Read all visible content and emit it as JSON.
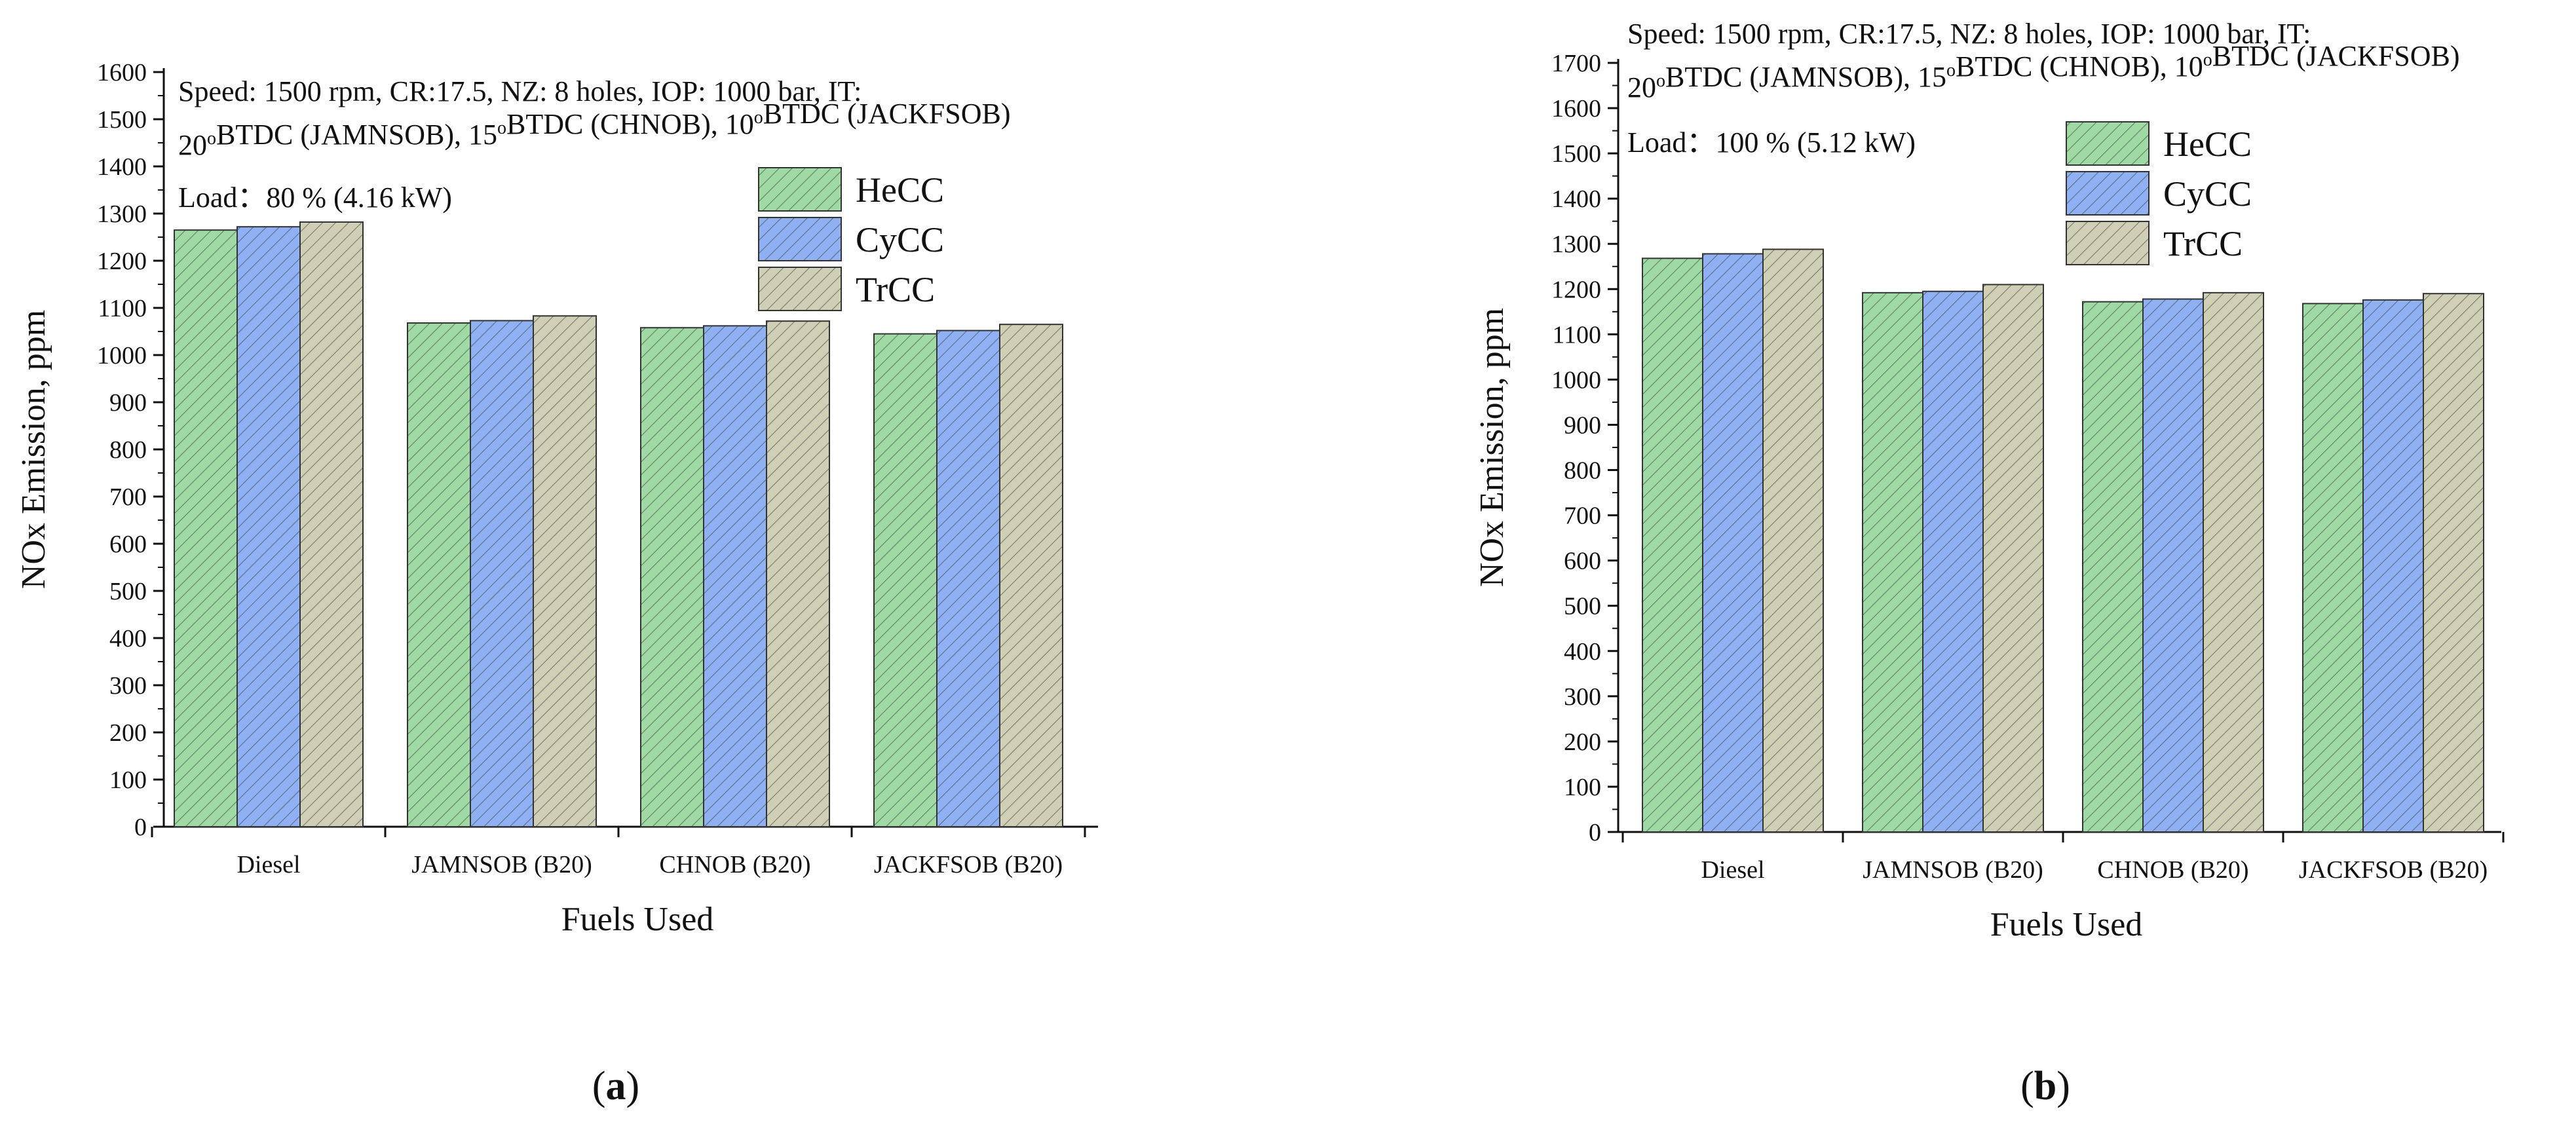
{
  "chart_data": [
    {
      "type": "bar",
      "panel_label": "(a)",
      "categories": [
        "Diesel",
        "JAMNSOB (B20)",
        "CHNOB (B20)",
        "JACKFSOB (B20)"
      ],
      "series": [
        {
          "name": "HeCC",
          "values": [
            1265,
            1068,
            1058,
            1045
          ],
          "color": "#9fd9a3"
        },
        {
          "name": "CyCC",
          "values": [
            1272,
            1073,
            1062,
            1052
          ],
          "color": "#8fb0f2"
        },
        {
          "name": "TrCC",
          "values": [
            1282,
            1083,
            1072,
            1065
          ],
          "color": "#cfcfb5"
        }
      ],
      "xlabel": "Fuels Used",
      "ylabel": "NOx Emission, ppm",
      "ylim": [
        0,
        1600
      ],
      "yticks": [
        0,
        100,
        200,
        300,
        400,
        500,
        600,
        700,
        800,
        900,
        1000,
        1100,
        1200,
        1300,
        1400,
        1500,
        1600
      ],
      "annotation": {
        "line1": "Speed: 1500 rpm, CR:17.5, NZ: 8 holes, IOP: 1000 bar, IT:",
        "line2_parts": [
          "20",
          "o",
          "BTDC (JAMNSOB), 15",
          "o",
          "BTDC (CHNOB), 10",
          "o",
          "BTDC (JACKFSOB)"
        ],
        "line3": "Load：80 %  (4.16 kW)"
      },
      "legend": "top-right"
    },
    {
      "type": "bar",
      "panel_label": "(b)",
      "categories": [
        "Diesel",
        "JAMNSOB (B20)",
        "CHNOB (B20)",
        "JACKFSOB (B20)"
      ],
      "series": [
        {
          "name": "HeCC",
          "values": [
            1268,
            1192,
            1172,
            1168
          ],
          "color": "#9fd9a3"
        },
        {
          "name": "CyCC",
          "values": [
            1278,
            1195,
            1178,
            1176
          ],
          "color": "#8fb0f2"
        },
        {
          "name": "TrCC",
          "values": [
            1288,
            1210,
            1192,
            1190
          ],
          "color": "#cfcfb5"
        }
      ],
      "xlabel": "Fuels Used",
      "ylabel": "NOx Emission, ppm",
      "ylim": [
        0,
        1700
      ],
      "yticks": [
        0,
        100,
        200,
        300,
        400,
        500,
        600,
        700,
        800,
        900,
        1000,
        1100,
        1200,
        1300,
        1400,
        1500,
        1600,
        1700
      ],
      "annotation": {
        "line1": "Speed: 1500 rpm, CR:17.5, NZ: 8 holes, IOP: 1000 bar, IT:",
        "line2_parts": [
          "20",
          "o",
          "BTDC (JAMNSOB), 15",
          "o",
          "BTDC (CHNOB), 10",
          "o",
          "BTDC (JACKFSOB)"
        ],
        "line3": "Load：100 %  (5.12 kW)"
      },
      "legend": "top-center"
    }
  ]
}
